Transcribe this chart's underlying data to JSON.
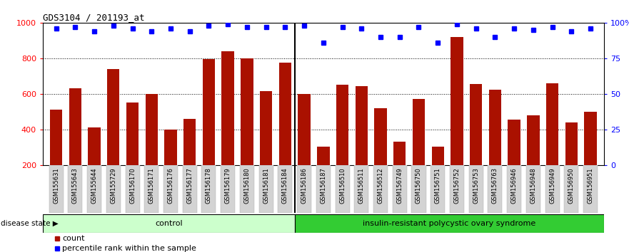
{
  "title": "GDS3104 / 201193_at",
  "samples": [
    "GSM155631",
    "GSM155643",
    "GSM155644",
    "GSM155729",
    "GSM156170",
    "GSM156171",
    "GSM156176",
    "GSM156177",
    "GSM156178",
    "GSM156179",
    "GSM156180",
    "GSM156181",
    "GSM156184",
    "GSM156186",
    "GSM156187",
    "GSM156510",
    "GSM156511",
    "GSM156512",
    "GSM156749",
    "GSM156750",
    "GSM156751",
    "GSM156752",
    "GSM156753",
    "GSM156763",
    "GSM156946",
    "GSM156948",
    "GSM156949",
    "GSM156950",
    "GSM156951"
  ],
  "bar_values": [
    510,
    630,
    410,
    740,
    550,
    600,
    400,
    460,
    795,
    840,
    800,
    615,
    775,
    600,
    305,
    650,
    645,
    520,
    330,
    570,
    305,
    920,
    655,
    625,
    455,
    480,
    660,
    440,
    500
  ],
  "percentile_values": [
    96,
    97,
    94,
    98,
    96,
    94,
    96,
    94,
    98,
    99,
    97,
    97,
    97,
    98,
    86,
    97,
    96,
    90,
    90,
    97,
    86,
    99,
    96,
    90,
    96,
    95,
    97,
    94,
    96
  ],
  "control_count": 13,
  "disease_label": "insulin-resistant polycystic ovary syndrome",
  "control_label": "control",
  "bar_color": "#aa1100",
  "dot_color": "#0000ff",
  "ylim_left": [
    200,
    1000
  ],
  "ylim_right": [
    0,
    100
  ],
  "yticks_left": [
    200,
    400,
    600,
    800,
    1000
  ],
  "yticks_right": [
    0,
    25,
    50,
    75,
    100
  ],
  "ytick_right_labels": [
    "0",
    "25",
    "50",
    "75",
    "100%"
  ],
  "grid_values": [
    400,
    600,
    800
  ],
  "label_bg": "#d3d3d3",
  "control_bg": "#ccffcc",
  "disease_bg": "#33cc33",
  "legend_count_label": "count",
  "legend_percentile_label": "percentile rank within the sample",
  "disease_state_label": "disease state"
}
